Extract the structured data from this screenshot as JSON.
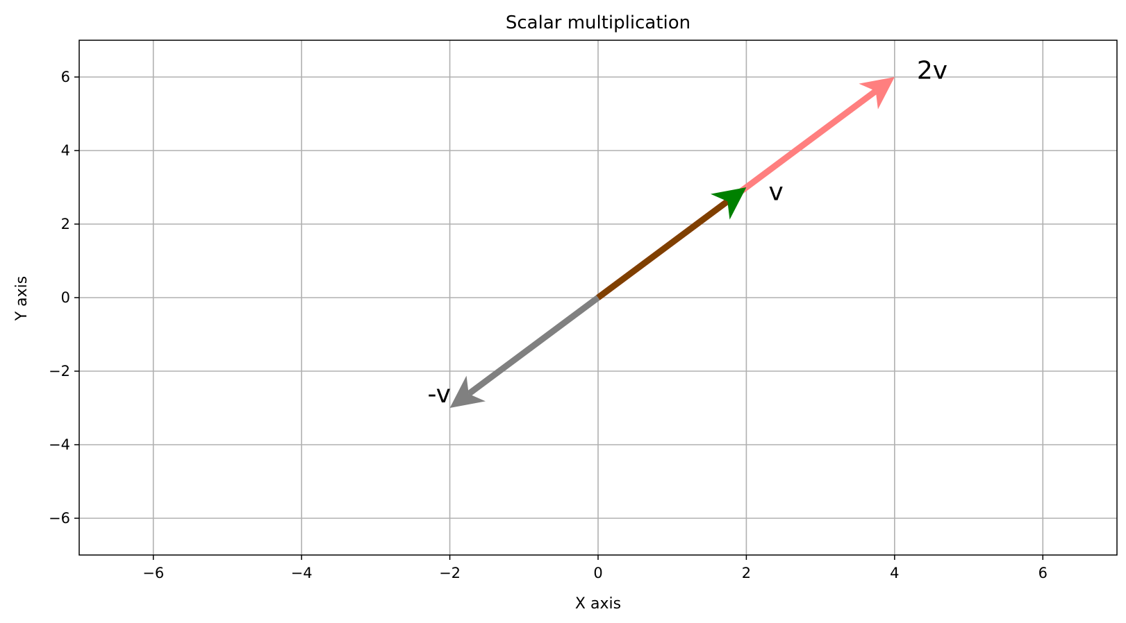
{
  "chart_data": {
    "type": "vector",
    "title": "Scalar multiplication",
    "xlabel": "X axis",
    "ylabel": "Y axis",
    "xlim": [
      -7,
      7
    ],
    "ylim": [
      -7,
      7
    ],
    "xticks": [
      -6,
      -4,
      -2,
      0,
      2,
      4,
      6
    ],
    "yticks": [
      -6,
      -4,
      -2,
      0,
      2,
      4,
      6
    ],
    "xtick_labels": [
      "−6",
      "−4",
      "−2",
      "0",
      "2",
      "4",
      "6"
    ],
    "ytick_labels": [
      "−6",
      "−4",
      "−2",
      "0",
      "2",
      "4",
      "6"
    ],
    "grid": true,
    "vectors": [
      {
        "name": "2v",
        "from": [
          0,
          0
        ],
        "to": [
          4,
          6
        ],
        "color": "#ff7f7f",
        "label_at": [
          4.3,
          6.2
        ]
      },
      {
        "name": "-v",
        "from": [
          0,
          0
        ],
        "to": [
          -2,
          -3
        ],
        "color": "#808080",
        "label_at": [
          -2.3,
          -2.6
        ]
      },
      {
        "name": "v",
        "from": [
          0,
          0
        ],
        "to": [
          2,
          3
        ],
        "color": "#008000",
        "shaft_color": "#7f3f00",
        "label_at": [
          2.3,
          2.9
        ]
      }
    ]
  }
}
